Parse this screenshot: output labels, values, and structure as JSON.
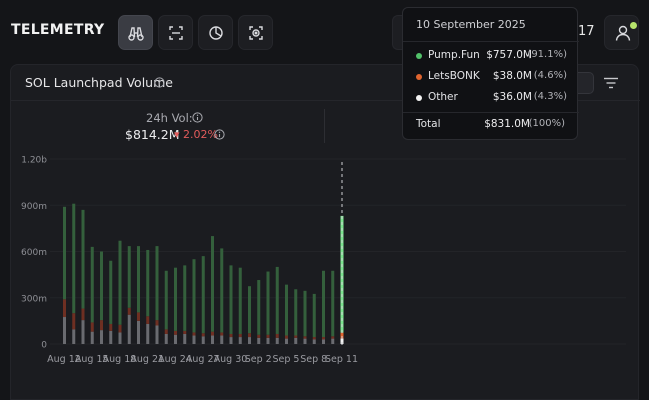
{
  "app": {
    "logo": "TELEMETRY",
    "header_number": "17"
  },
  "icons": {
    "nav": [
      "binoculars-icon",
      "scan-icon",
      "pie-chart-icon",
      "focus-target-icon"
    ],
    "user": "user-icon",
    "info": "info-icon",
    "filter": "filter-icon"
  },
  "panel": {
    "title": "SOL Launchpad Volume",
    "stat": {
      "label": "24h Vol:",
      "value": "$814.2M",
      "change": "2.02%",
      "change_direction": "down"
    }
  },
  "tooltip": {
    "date": "10 September 2025",
    "rows": [
      {
        "name": "Pump.Fun",
        "value": "$757.0M",
        "pct": "(91.1%)",
        "color": "#52c26a"
      },
      {
        "name": "LetsBONK",
        "value": "$38.0M",
        "pct": "(4.6%)",
        "color": "#e0652f"
      },
      {
        "name": "Other",
        "value": "$36.0M",
        "pct": "(4.3%)",
        "color": "#f2f2f2"
      }
    ],
    "total_label": "Total",
    "total_value": "$831.0M",
    "total_pct": "(100%)"
  },
  "colors": {
    "pump": "#34603c",
    "pump_highlight": "#7be38e",
    "bonk": "#6e2f22",
    "bonk_highlight": "#e0652f",
    "other": "#6a6b70",
    "other_highlight": "#f2f2f2",
    "negative": "#e25b5b",
    "online": "#b6e36b"
  },
  "chart_data": {
    "type": "bar",
    "stacked": true,
    "yticks": [
      "0",
      "300m",
      "600m",
      "900m",
      "1.20b"
    ],
    "ylim": [
      0,
      1200
    ],
    "xticks": [
      "Aug 12",
      "Aug 15",
      "Aug 18",
      "Aug 21",
      "Aug 24",
      "Aug 27",
      "Aug 30",
      "Sep 2",
      "Sep 5",
      "Sep 8",
      "Sep 11"
    ],
    "categories": [
      "Aug 11",
      "Aug 12",
      "Aug 13",
      "Aug 14",
      "Aug 15",
      "Aug 16",
      "Aug 17",
      "Aug 18",
      "Aug 19",
      "Aug 20",
      "Aug 21",
      "Aug 22",
      "Aug 23",
      "Aug 24",
      "Aug 25",
      "Aug 26",
      "Aug 27",
      "Aug 28",
      "Aug 29",
      "Aug 30",
      "Aug 31",
      "Sep 1",
      "Sep 2",
      "Sep 3",
      "Sep 4",
      "Sep 5",
      "Sep 6",
      "Sep 7",
      "Sep 8",
      "Sep 9",
      "Sep 10",
      "Sep 11"
    ],
    "series": [
      {
        "name": "Other",
        "values": [
          175,
          95,
          155,
          80,
          90,
          85,
          75,
          190,
          150,
          130,
          120,
          65,
          60,
          65,
          55,
          50,
          55,
          55,
          45,
          45,
          45,
          40,
          40,
          40,
          35,
          40,
          35,
          30,
          30,
          35,
          36,
          0
        ]
      },
      {
        "name": "LetsBONK",
        "values": [
          115,
          105,
          75,
          60,
          65,
          45,
          50,
          45,
          55,
          50,
          35,
          30,
          25,
          20,
          20,
          20,
          25,
          20,
          20,
          20,
          25,
          20,
          20,
          25,
          20,
          15,
          15,
          15,
          15,
          15,
          38,
          0
        ]
      },
      {
        "name": "Pump.Fun",
        "values": [
          600,
          710,
          640,
          490,
          445,
          410,
          545,
          400,
          430,
          430,
          480,
          380,
          410,
          425,
          475,
          500,
          620,
          545,
          445,
          430,
          305,
          355,
          410,
          435,
          330,
          300,
          295,
          280,
          430,
          425,
          757,
          0
        ]
      }
    ],
    "highlight_index": 30
  }
}
